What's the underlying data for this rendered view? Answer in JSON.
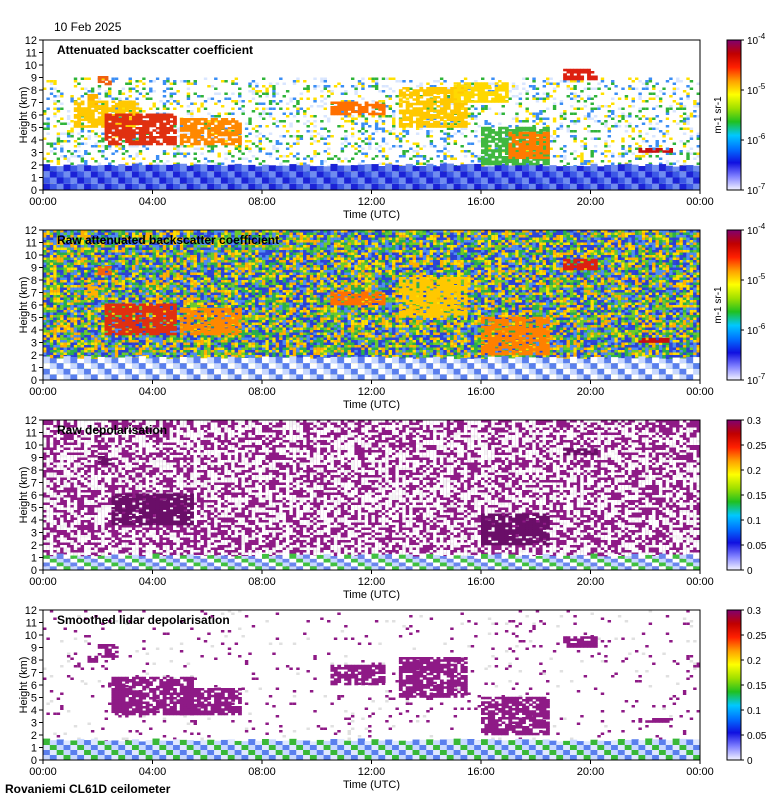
{
  "date": "10 Feb 2025",
  "footer": "Rovaniemi CL61D ceilometer",
  "chart_data": [
    {
      "type": "heatmap",
      "title": "Attenuated backscatter coefficient",
      "xlabel": "Time (UTC)",
      "ylabel": "Height (km)",
      "x_ticks": [
        "00:00",
        "04:00",
        "08:00",
        "12:00",
        "16:00",
        "20:00",
        "00:00"
      ],
      "y_ticks": [
        0,
        1,
        2,
        3,
        4,
        5,
        6,
        7,
        8,
        9,
        10,
        11,
        12
      ],
      "ylim": [
        0,
        12
      ],
      "colorbar": {
        "scale": "log",
        "range": [
          1e-07,
          0.0001
        ],
        "ticks": [
          "10-7",
          "10-6",
          "10-5",
          "10-4"
        ],
        "label": "m-1 sr-1"
      },
      "background": "#ffffff",
      "base_layer": {
        "top_km": 2.0,
        "colors": [
          "#1b22d6",
          "#3c58e6",
          "#6f8cf0"
        ]
      },
      "scatter": {
        "top_km": 9,
        "density": 0.35,
        "colors": [
          "#ffffff",
          "#d9e6ff",
          "#3b8ef5",
          "#2fb43a",
          "#ffe000"
        ]
      },
      "features": [
        {
          "t": [
            6.5,
            8.0
          ],
          "h": [
            6.6,
            7.5
          ],
          "color": "#ffb000"
        },
        {
          "t": [
            8.0,
            10.0
          ],
          "h": [
            8.4,
            9.1
          ],
          "color": "#f06010"
        },
        {
          "t": [
            4.5,
            14.0
          ],
          "h": [
            5.0,
            7.0
          ],
          "color": "#ffc800"
        },
        {
          "t": [
            9.0,
            19.5
          ],
          "h": [
            3.6,
            6.0
          ],
          "color": "#e03010"
        },
        {
          "t": [
            20.0,
            29.0
          ],
          "h": [
            3.6,
            5.6
          ],
          "color": "#ff8800"
        },
        {
          "t": [
            42.0,
            50.0
          ],
          "h": [
            6.0,
            7.0
          ],
          "color": "#ff7000"
        },
        {
          "t": [
            52.0,
            62.0
          ],
          "h": [
            5.0,
            8.2
          ],
          "color": "#ffc800"
        },
        {
          "t": [
            60.0,
            68.0
          ],
          "h": [
            7.0,
            8.5
          ],
          "color": "#ffd800"
        },
        {
          "t": [
            64.0,
            74.0
          ],
          "h": [
            2.0,
            5.0
          ],
          "color": "#40b840"
        },
        {
          "t": [
            68.0,
            74.0
          ],
          "h": [
            2.5,
            4.5
          ],
          "color": "#ff7a00"
        },
        {
          "t": [
            76.0,
            81.0
          ],
          "h": [
            8.8,
            9.6
          ],
          "color": "#dd2010"
        },
        {
          "t": [
            87.0,
            92.0
          ],
          "h": [
            3.0,
            3.3
          ],
          "color": "#c81010"
        }
      ]
    },
    {
      "type": "heatmap",
      "title": "Raw attenuated backscatter coefficient",
      "xlabel": "Time (UTC)",
      "ylabel": "Height (km)",
      "x_ticks": [
        "00:00",
        "04:00",
        "08:00",
        "12:00",
        "16:00",
        "20:00",
        "00:00"
      ],
      "y_ticks": [
        0,
        1,
        2,
        3,
        4,
        5,
        6,
        7,
        8,
        9,
        10,
        11,
        12
      ],
      "ylim": [
        0,
        12
      ],
      "colorbar": {
        "scale": "log",
        "range": [
          1e-07,
          0.0001
        ],
        "ticks": [
          "10-7",
          "10-6",
          "10-5",
          "10-4"
        ],
        "label": "m-1 sr-1"
      },
      "background": "#2a3fd2",
      "base_layer": {
        "top_km": 1.8,
        "colors": [
          "#c8d8ff",
          "#5a7fee",
          "#ffffff"
        ]
      },
      "scatter": {
        "top_km": 12,
        "density": 0.9,
        "colors": [
          "#2e46d8",
          "#4f8df0",
          "#2ab04a",
          "#6ccc2a",
          "#ffe000",
          "#ffb000"
        ]
      },
      "features": [
        {
          "t": [
            6.5,
            8.0
          ],
          "h": [
            6.6,
            7.5
          ],
          "color": "#ffb000"
        },
        {
          "t": [
            8.0,
            10.0
          ],
          "h": [
            8.4,
            9.1
          ],
          "color": "#f06010"
        },
        {
          "t": [
            9.0,
            19.5
          ],
          "h": [
            3.6,
            6.0
          ],
          "color": "#e03010"
        },
        {
          "t": [
            20.0,
            29.0
          ],
          "h": [
            3.6,
            5.6
          ],
          "color": "#ff8800"
        },
        {
          "t": [
            42.0,
            50.0
          ],
          "h": [
            6.0,
            7.0
          ],
          "color": "#ff7000"
        },
        {
          "t": [
            52.0,
            62.0
          ],
          "h": [
            5.0,
            8.2
          ],
          "color": "#ffc800"
        },
        {
          "t": [
            64.0,
            74.0
          ],
          "h": [
            2.0,
            5.0
          ],
          "color": "#ff8000"
        },
        {
          "t": [
            76.0,
            81.0
          ],
          "h": [
            8.8,
            9.6
          ],
          "color": "#dd2010"
        },
        {
          "t": [
            87.0,
            92.0
          ],
          "h": [
            3.0,
            3.3
          ],
          "color": "#c81010"
        }
      ]
    },
    {
      "type": "heatmap",
      "title": "Raw depolarisation",
      "xlabel": "Time (UTC)",
      "ylabel": "Height (km)",
      "x_ticks": [
        "00:00",
        "04:00",
        "08:00",
        "12:00",
        "16:00",
        "20:00",
        "00:00"
      ],
      "y_ticks": [
        0,
        1,
        2,
        3,
        4,
        5,
        6,
        7,
        8,
        9,
        10,
        11,
        12
      ],
      "ylim": [
        0,
        12
      ],
      "colorbar": {
        "scale": "linear",
        "range": [
          0,
          0.3
        ],
        "ticks": [
          "0",
          "0.05",
          "0.1",
          "0.15",
          "0.2",
          "0.25",
          "0.3"
        ],
        "label": ""
      },
      "background": "#8e1a86",
      "base_layer": {
        "top_km": 1.2,
        "colors": [
          "#c8d8ff",
          "#6a86ee",
          "#ffffff",
          "#40c040"
        ]
      },
      "scatter": {
        "top_km": 12,
        "density": 0.55,
        "colors": [
          "#ffffff",
          "#ffffff",
          "#f4f4f4",
          "#ffffff"
        ]
      },
      "features": [
        {
          "t": [
            8.0,
            10.0
          ],
          "h": [
            8.4,
            9.0
          ],
          "color": "#6a0e68"
        },
        {
          "t": [
            10.0,
            22.0
          ],
          "h": [
            3.6,
            6.0
          ],
          "color": "#6a0e68"
        },
        {
          "t": [
            64.0,
            74.0
          ],
          "h": [
            2.0,
            4.5
          ],
          "color": "#6a0e68"
        },
        {
          "t": [
            76.0,
            81.0
          ],
          "h": [
            9.2,
            9.7
          ],
          "color": "#6a0e68"
        }
      ]
    },
    {
      "type": "heatmap",
      "title": "Smoothed lidar depolarisation",
      "xlabel": "Time (UTC)",
      "ylabel": "Height (km)",
      "x_ticks": [
        "00:00",
        "04:00",
        "08:00",
        "12:00",
        "16:00",
        "20:00",
        "00:00"
      ],
      "y_ticks": [
        0,
        1,
        2,
        3,
        4,
        5,
        6,
        7,
        8,
        9,
        10,
        11,
        12
      ],
      "ylim": [
        0,
        12
      ],
      "colorbar": {
        "scale": "linear",
        "range": [
          0,
          0.3
        ],
        "ticks": [
          "0",
          "0.05",
          "0.1",
          "0.15",
          "0.2",
          "0.25",
          "0.3"
        ],
        "label": ""
      },
      "background": "#ffffff",
      "base_layer": {
        "top_km": 1.6,
        "colors": [
          "#c8d8ff",
          "#5a7fee",
          "#e0e8ff",
          "#38b838"
        ]
      },
      "scatter": {
        "top_km": 12,
        "density": 0.06,
        "colors": [
          "#8e1a86",
          "#8e1a86",
          "#e0e0e0"
        ]
      },
      "features": [
        {
          "t": [
            6.5,
            8.0
          ],
          "h": [
            7.8,
            8.2
          ],
          "color": "#8e1a86"
        },
        {
          "t": [
            8.0,
            11.0
          ],
          "h": [
            8.2,
            9.2
          ],
          "color": "#8e1a86"
        },
        {
          "t": [
            10.0,
            22.0
          ],
          "h": [
            3.6,
            6.5
          ],
          "color": "#8e1a86"
        },
        {
          "t": [
            20.0,
            29.0
          ],
          "h": [
            3.6,
            5.6
          ],
          "color": "#8e1a86"
        },
        {
          "t": [
            42.0,
            50.0
          ],
          "h": [
            6.0,
            7.5
          ],
          "color": "#8e1a86"
        },
        {
          "t": [
            52.0,
            62.0
          ],
          "h": [
            5.0,
            8.2
          ],
          "color": "#8e1a86"
        },
        {
          "t": [
            64.0,
            74.0
          ],
          "h": [
            2.0,
            5.0
          ],
          "color": "#8e1a86"
        },
        {
          "t": [
            76.0,
            81.0
          ],
          "h": [
            9.0,
            9.8
          ],
          "color": "#8e1a86"
        },
        {
          "t": [
            87.0,
            92.0
          ],
          "h": [
            3.0,
            3.3
          ],
          "color": "#8e1a86"
        }
      ]
    }
  ]
}
